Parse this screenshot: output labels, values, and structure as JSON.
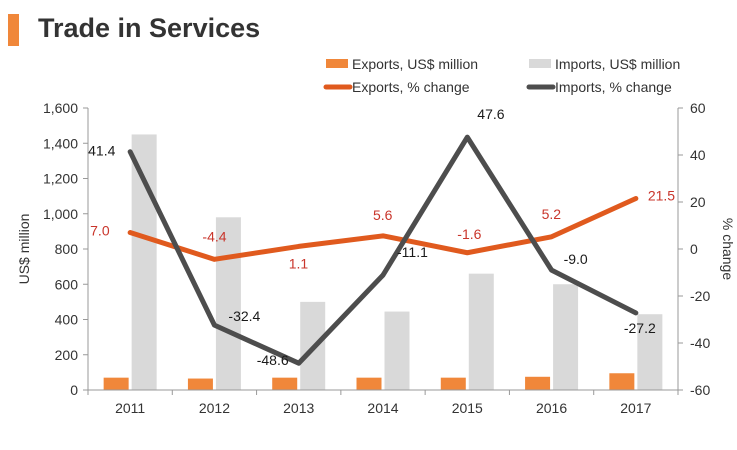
{
  "header": {
    "title": "Trade in Services",
    "accent_color": "#f0873a"
  },
  "chart_data": {
    "type": "bar",
    "categories": [
      "2011",
      "2012",
      "2013",
      "2014",
      "2015",
      "2016",
      "2017"
    ],
    "ylabel": "US$ million",
    "y2label": "% change",
    "ylim": [
      0,
      1600
    ],
    "yticks": [
      "0",
      "200",
      "400",
      "600",
      "800",
      "1,000",
      "1,200",
      "1,400",
      "1,600"
    ],
    "y2lim": [
      -60,
      60
    ],
    "y2ticks": [
      "-60",
      "-40",
      "-20",
      "0",
      "20",
      "40",
      "60"
    ],
    "grid": false,
    "legend_position": "top-right",
    "series": [
      {
        "name": "Exports, US$ million",
        "kind": "bar",
        "axis": "left",
        "color": "#f0873a",
        "values": [
          70,
          65,
          70,
          70,
          70,
          75,
          95
        ]
      },
      {
        "name": "Imports, US$ million",
        "kind": "bar",
        "axis": "left",
        "color": "#d9d9d9",
        "values": [
          1450,
          980,
          500,
          445,
          660,
          600,
          430
        ]
      },
      {
        "name": "Exports, % change",
        "kind": "line",
        "axis": "right",
        "color": "#e05a1e",
        "values": [
          7.0,
          -4.4,
          1.1,
          5.6,
          -1.6,
          5.2,
          21.5
        ],
        "labels": [
          "7.0",
          "-4.4",
          "1.1",
          "5.6",
          "-1.6",
          "5.2",
          "21.5"
        ],
        "label_color": "#c9352b"
      },
      {
        "name": "Imports, % change",
        "kind": "line",
        "axis": "right",
        "color": "#4d4d4d",
        "values": [
          41.4,
          -32.4,
          -48.6,
          -11.1,
          47.6,
          -9.0,
          -27.2
        ],
        "labels": [
          "41.4",
          "-32.4",
          "-48.6",
          "-11.1",
          "47.6",
          "-9.0",
          "-27.2"
        ],
        "label_color": "#1a1a1a"
      }
    ]
  }
}
